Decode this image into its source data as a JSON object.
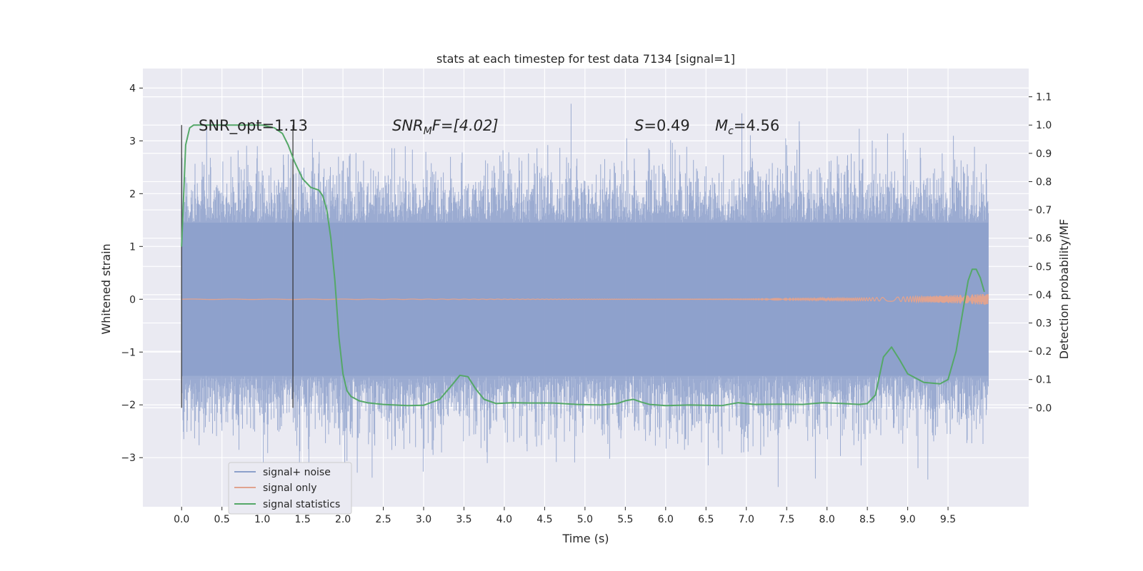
{
  "chart_data": {
    "type": "line",
    "title": "stats at each timestep for test data 7134 [signal=1]",
    "xlabel": "Time (s)",
    "ylabel": "Whitened strain",
    "y2label": "Detection probability/MF",
    "xlim": [
      -0.48,
      10.5
    ],
    "ylim": [
      -3.93,
      4.37
    ],
    "y2lim": [
      -0.35,
      1.2
    ],
    "xticks": [
      0.0,
      0.5,
      1.0,
      1.5,
      2.0,
      2.5,
      3.0,
      3.5,
      4.0,
      4.5,
      5.0,
      5.5,
      6.0,
      6.5,
      7.0,
      7.5,
      8.0,
      8.5,
      9.0,
      9.5
    ],
    "xtick_labels": [
      "0.0",
      "0.5",
      "1.0",
      "1.5",
      "2.0",
      "2.5",
      "3.0",
      "3.5",
      "4.0",
      "4.5",
      "5.0",
      "5.5",
      "6.0",
      "6.5",
      "7.0",
      "7.5",
      "8.0",
      "8.5",
      "9.0",
      "9.5"
    ],
    "yticks": [
      -3,
      -2,
      -1,
      0,
      1,
      2,
      3,
      4
    ],
    "ytick_labels": [
      "−3",
      "−2",
      "−1",
      "0",
      "1",
      "2",
      "3",
      "4"
    ],
    "y2ticks": [
      0.0,
      0.1,
      0.2,
      0.3,
      0.4,
      0.5,
      0.6,
      0.7,
      0.8,
      0.9,
      1.0,
      1.1
    ],
    "y2tick_labels": [
      "0.0",
      "0.1",
      "0.2",
      "0.3",
      "0.4",
      "0.5",
      "0.6",
      "0.7",
      "0.8",
      "0.9",
      "1.0",
      "1.1"
    ],
    "grid": true,
    "legend_position": "lower-left",
    "annotations": {
      "snr_opt": "SNR_opt=1.13",
      "snr_mf_prefix": "SNR",
      "snr_mf_sub": "M",
      "snr_mf_rest": "F=[4.02]",
      "s_var": "S",
      "s_val": "=0.49",
      "mc_var": "M",
      "mc_sub": "c",
      "mc_val": "=4.56"
    },
    "vlines": [
      0.0,
      1.38
    ],
    "series": [
      {
        "name": "signal+ noise",
        "axis": "left",
        "color": "#8da0cb",
        "description": "whitened strain noise, approx ±1.5 core band with spikes up to ~4",
        "t_range": [
          0.0,
          10.0
        ],
        "core_amplitude": 1.45,
        "peak_max": 4.05,
        "peak_min": -3.6
      },
      {
        "name": "signal only",
        "axis": "left",
        "color": "#e1a38f",
        "description": "chirp, negligible until ~6 s, grows to ~0.1 near 9.8 s",
        "t_range": [
          0.0,
          10.0
        ]
      },
      {
        "name": "signal statistics",
        "axis": "right",
        "color": "#55a868",
        "x": [
          0.0,
          0.05,
          0.1,
          0.15,
          0.25,
          0.5,
          0.8,
          1.0,
          1.15,
          1.25,
          1.32,
          1.4,
          1.5,
          1.6,
          1.7,
          1.75,
          1.8,
          1.85,
          1.9,
          1.95,
          2.0,
          2.05,
          2.1,
          2.2,
          2.3,
          2.5,
          2.8,
          3.0,
          3.2,
          3.35,
          3.45,
          3.55,
          3.65,
          3.75,
          3.9,
          4.1,
          4.3,
          4.6,
          4.9,
          5.2,
          5.4,
          5.5,
          5.6,
          5.7,
          5.8,
          6.0,
          6.3,
          6.7,
          6.9,
          7.1,
          7.4,
          7.7,
          7.95,
          8.2,
          8.4,
          8.5,
          8.6,
          8.7,
          8.8,
          8.9,
          9.0,
          9.2,
          9.4,
          9.5,
          9.6,
          9.7,
          9.75,
          9.8,
          9.85,
          9.9,
          9.95
        ],
        "values": [
          0.57,
          0.93,
          0.99,
          1.0,
          1.0,
          1.0,
          1.0,
          1.0,
          0.99,
          0.97,
          0.93,
          0.87,
          0.81,
          0.78,
          0.77,
          0.75,
          0.7,
          0.6,
          0.45,
          0.25,
          0.12,
          0.06,
          0.04,
          0.025,
          0.018,
          0.012,
          0.008,
          0.009,
          0.03,
          0.08,
          0.115,
          0.11,
          0.065,
          0.03,
          0.015,
          0.018,
          0.017,
          0.017,
          0.012,
          0.01,
          0.015,
          0.025,
          0.03,
          0.02,
          0.012,
          0.008,
          0.01,
          0.008,
          0.018,
          0.012,
          0.013,
          0.012,
          0.018,
          0.015,
          0.012,
          0.015,
          0.045,
          0.18,
          0.215,
          0.17,
          0.12,
          0.09,
          0.085,
          0.1,
          0.2,
          0.37,
          0.45,
          0.49,
          0.49,
          0.46,
          0.41
        ]
      }
    ]
  }
}
